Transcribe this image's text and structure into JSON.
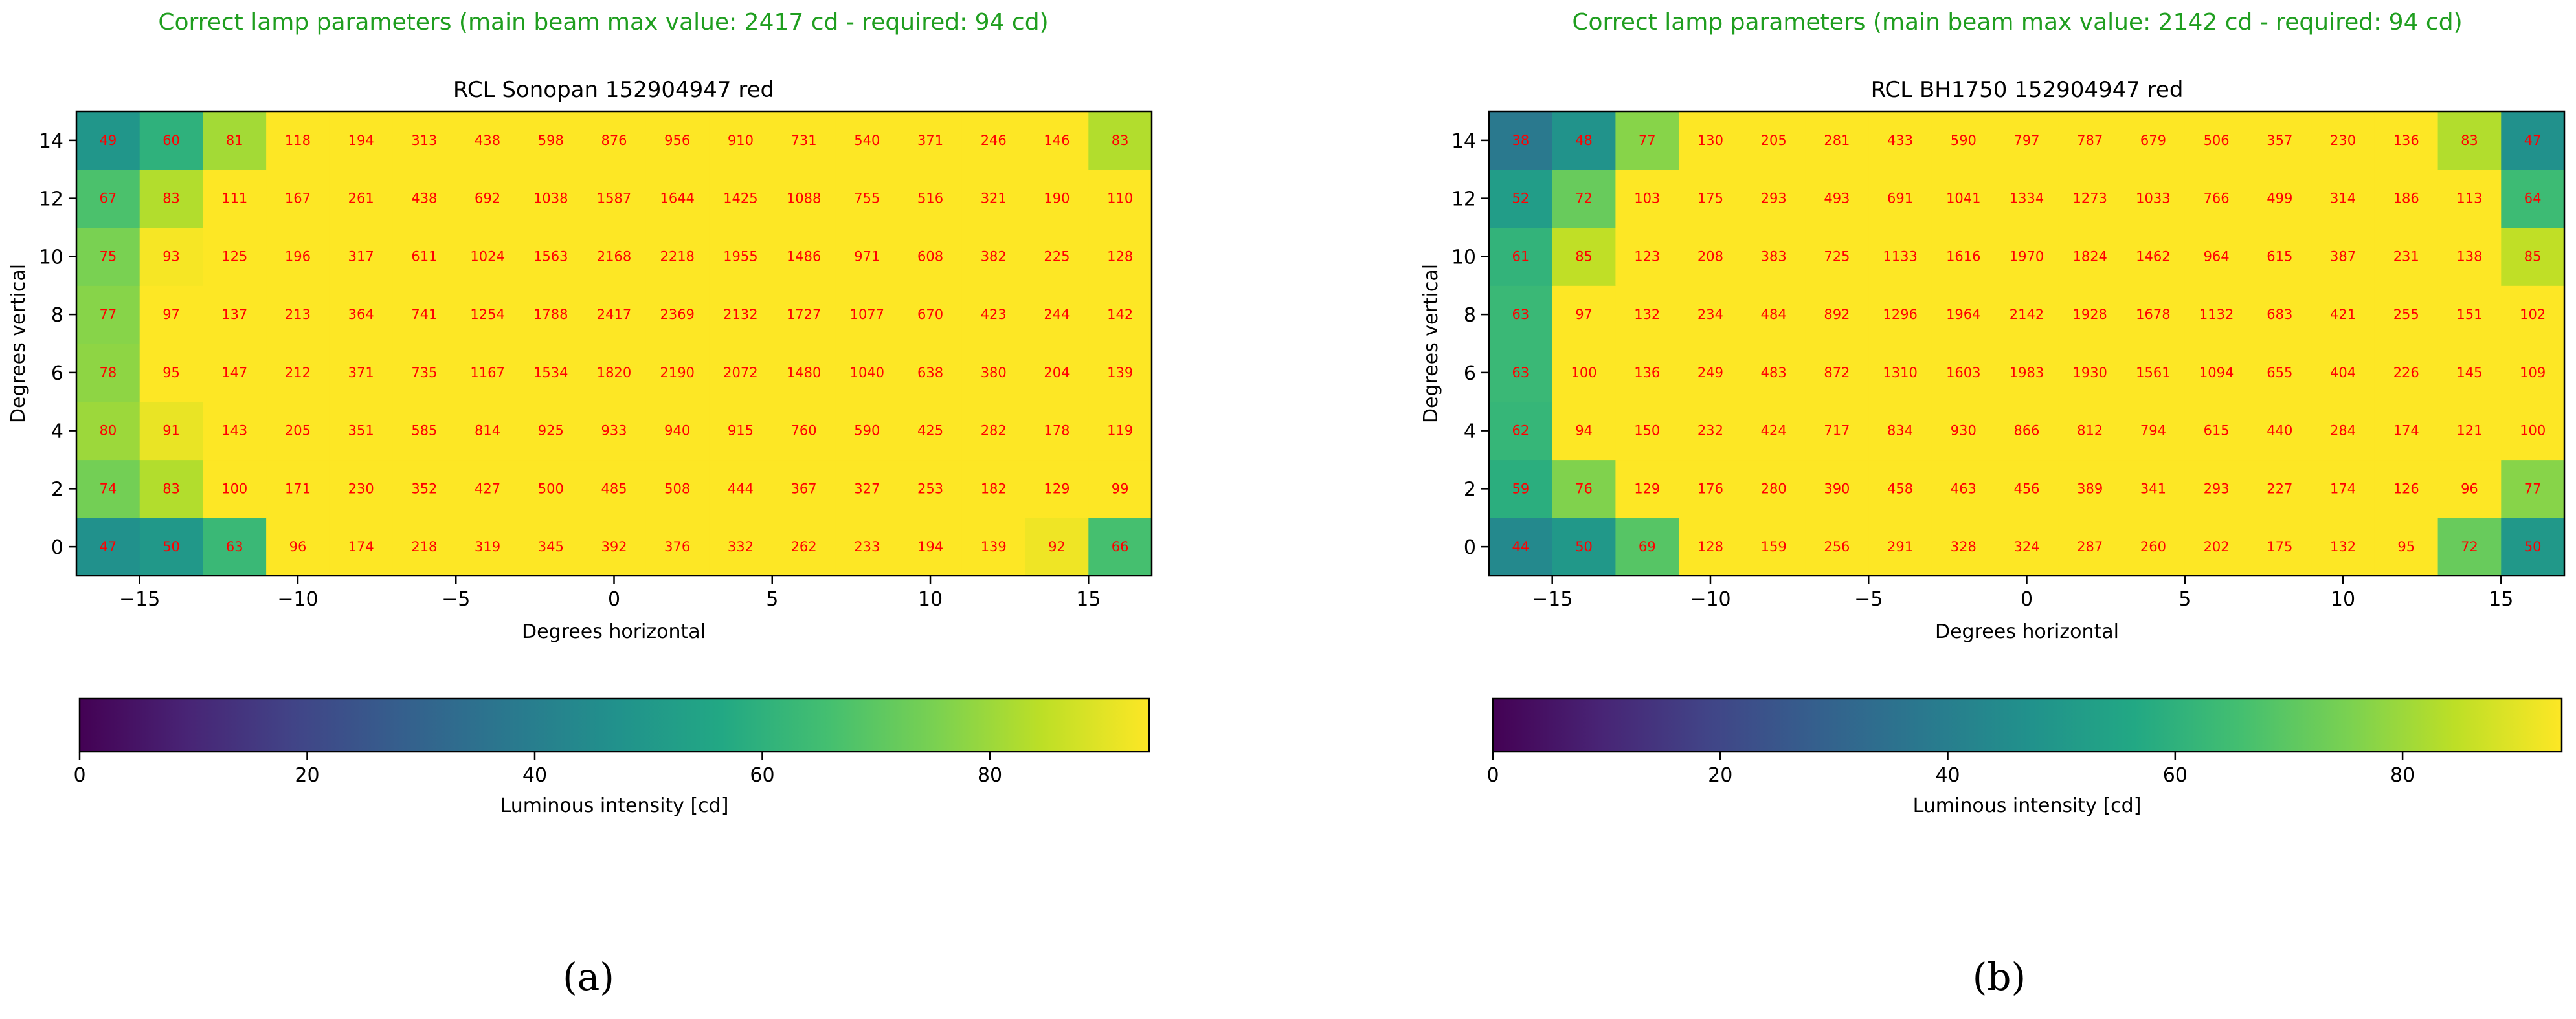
{
  "colormap_stops": [
    "#440154",
    "#482475",
    "#414487",
    "#355f8d",
    "#2a788e",
    "#21918c",
    "#22a884",
    "#44bf70",
    "#7ad151",
    "#bddf26",
    "#fde725"
  ],
  "colors": {
    "status": "#1f9e1f",
    "cell_label": "#ff0000",
    "axis": "#000000"
  },
  "panels": [
    {
      "caption": "(a)",
      "status": "Correct lamp parameters (main beam max value: 2417 cd - required: 94 cd)",
      "chart_data": {
        "type": "heatmap",
        "title": "RCL Sonopan 152904947 red",
        "xlabel": "Degrees horizontal",
        "ylabel": "Degrees vertical",
        "x": [
          -16,
          -14,
          -12,
          -10,
          -8,
          -6,
          -4,
          -2,
          0,
          2,
          4,
          6,
          8,
          10,
          12,
          14,
          16
        ],
        "y": [
          0,
          2,
          4,
          6,
          8,
          10,
          12,
          14
        ],
        "xlim": [
          -17,
          17
        ],
        "ylim": [
          -1,
          15
        ],
        "xticks": [
          -15,
          -10,
          -5,
          0,
          5,
          10,
          15
        ],
        "xtick_labels": [
          "−15",
          "−10",
          "−5",
          "0",
          "5",
          "10",
          "15"
        ],
        "yticks": [
          0,
          2,
          4,
          6,
          8,
          10,
          12,
          14
        ],
        "ytick_labels": [
          "0",
          "2",
          "4",
          "6",
          "8",
          "10",
          "12",
          "14"
        ],
        "values": [
          [
            47,
            50,
            63,
            96,
            174,
            218,
            319,
            345,
            392,
            376,
            332,
            262,
            233,
            194,
            139,
            92,
            66
          ],
          [
            74,
            83,
            100,
            171,
            230,
            352,
            427,
            500,
            485,
            508,
            444,
            367,
            327,
            253,
            182,
            129,
            99
          ],
          [
            80,
            91,
            143,
            205,
            351,
            585,
            814,
            925,
            933,
            940,
            915,
            760,
            590,
            425,
            282,
            178,
            119
          ],
          [
            78,
            95,
            147,
            212,
            371,
            735,
            1167,
            1534,
            1820,
            2190,
            2072,
            1480,
            1040,
            638,
            380,
            204,
            139
          ],
          [
            77,
            97,
            137,
            213,
            364,
            741,
            1254,
            1788,
            2417,
            2369,
            2132,
            1727,
            1077,
            670,
            423,
            244,
            142
          ],
          [
            75,
            93,
            125,
            196,
            317,
            611,
            1024,
            1563,
            2168,
            2218,
            1955,
            1486,
            971,
            608,
            382,
            225,
            128
          ],
          [
            67,
            83,
            111,
            167,
            261,
            438,
            692,
            1038,
            1587,
            1644,
            1425,
            1088,
            755,
            516,
            321,
            190,
            110
          ],
          [
            49,
            60,
            81,
            118,
            194,
            313,
            438,
            598,
            876,
            956,
            910,
            731,
            540,
            371,
            246,
            146,
            83
          ]
        ],
        "colorbar": {
          "label": "Luminous intensity [cd]",
          "vmin": 0,
          "vmax": 94,
          "ticks": [
            0,
            20,
            40,
            60,
            80
          ],
          "tick_labels": [
            "0",
            "20",
            "40",
            "60",
            "80"
          ]
        }
      }
    },
    {
      "caption": "(b)",
      "status": "Correct lamp parameters (main beam max value: 2142 cd - required: 94 cd)",
      "chart_data": {
        "type": "heatmap",
        "title": "RCL BH1750 152904947 red",
        "xlabel": "Degrees horizontal",
        "ylabel": "Degrees vertical",
        "x": [
          -16,
          -14,
          -12,
          -10,
          -8,
          -6,
          -4,
          -2,
          0,
          2,
          4,
          6,
          8,
          10,
          12,
          14,
          16
        ],
        "y": [
          0,
          2,
          4,
          6,
          8,
          10,
          12,
          14
        ],
        "xlim": [
          -17,
          17
        ],
        "ylim": [
          -1,
          15
        ],
        "xticks": [
          -15,
          -10,
          -5,
          0,
          5,
          10,
          15
        ],
        "xtick_labels": [
          "−15",
          "−10",
          "−5",
          "0",
          "5",
          "10",
          "15"
        ],
        "yticks": [
          0,
          2,
          4,
          6,
          8,
          10,
          12,
          14
        ],
        "ytick_labels": [
          "0",
          "2",
          "4",
          "6",
          "8",
          "10",
          "12",
          "14"
        ],
        "values": [
          [
            44,
            50,
            69,
            128,
            159,
            256,
            291,
            328,
            324,
            287,
            260,
            202,
            175,
            132,
            95,
            72,
            50
          ],
          [
            59,
            76,
            129,
            176,
            280,
            390,
            458,
            463,
            456,
            389,
            341,
            293,
            227,
            174,
            126,
            96,
            77
          ],
          [
            62,
            94,
            150,
            232,
            424,
            717,
            834,
            930,
            866,
            812,
            794,
            615,
            440,
            284,
            174,
            121,
            100
          ],
          [
            63,
            100,
            136,
            249,
            483,
            872,
            1310,
            1603,
            1983,
            1930,
            1561,
            1094,
            655,
            404,
            226,
            145,
            109
          ],
          [
            63,
            97,
            132,
            234,
            484,
            892,
            1296,
            1964,
            2142,
            1928,
            1678,
            1132,
            683,
            421,
            255,
            151,
            102
          ],
          [
            61,
            85,
            123,
            208,
            383,
            725,
            1133,
            1616,
            1970,
            1824,
            1462,
            964,
            615,
            387,
            231,
            138,
            85
          ],
          [
            52,
            72,
            103,
            175,
            293,
            493,
            691,
            1041,
            1334,
            1273,
            1033,
            766,
            499,
            314,
            186,
            113,
            64
          ],
          [
            38,
            48,
            77,
            130,
            205,
            281,
            433,
            590,
            797,
            787,
            679,
            506,
            357,
            230,
            136,
            83,
            47
          ]
        ],
        "colorbar": {
          "label": "Luminous intensity [cd]",
          "vmin": 0,
          "vmax": 94,
          "ticks": [
            0,
            20,
            40,
            60,
            80
          ],
          "tick_labels": [
            "0",
            "20",
            "40",
            "60",
            "80"
          ]
        }
      }
    }
  ]
}
